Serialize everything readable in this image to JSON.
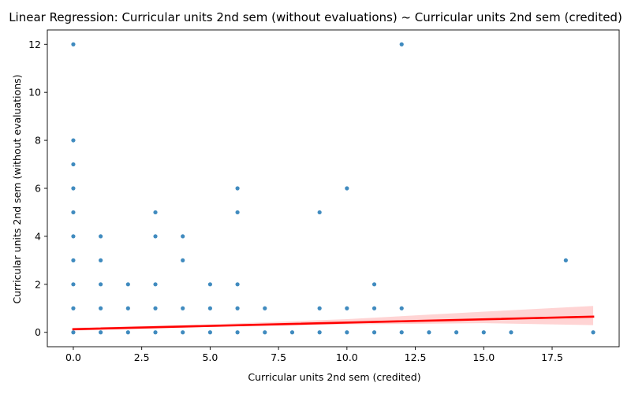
{
  "chart_data": {
    "type": "scatter",
    "title": "Linear Regression: Curricular units 2nd sem (without evaluations) ~ Curricular units 2nd sem (credited)",
    "xlabel": "Curricular units 2nd sem (credited)",
    "ylabel": "Curricular units 2nd sem (without evaluations)",
    "xlim": [
      -0.95,
      19.95
    ],
    "ylim": [
      -0.6,
      12.6
    ],
    "xticks": [
      0,
      2.5,
      5,
      7.5,
      10,
      12.5,
      15,
      17.5
    ],
    "xtick_labels": [
      "0.0",
      "2.5",
      "5.0",
      "7.5",
      "10.0",
      "12.5",
      "15.0",
      "17.5"
    ],
    "yticks": [
      0,
      2,
      4,
      6,
      8,
      10,
      12
    ],
    "ytick_labels": [
      "0",
      "2",
      "4",
      "6",
      "8",
      "10",
      "12"
    ],
    "grid": false,
    "point_color": "#1f77b4",
    "line_color": "#ff0000",
    "band_color": "#ff0000",
    "points": [
      [
        0,
        0
      ],
      [
        0,
        1
      ],
      [
        0,
        2
      ],
      [
        0,
        3
      ],
      [
        0,
        4
      ],
      [
        0,
        5
      ],
      [
        0,
        6
      ],
      [
        0,
        7
      ],
      [
        0,
        8
      ],
      [
        0,
        12
      ],
      [
        1,
        0
      ],
      [
        1,
        1
      ],
      [
        1,
        2
      ],
      [
        1,
        3
      ],
      [
        1,
        4
      ],
      [
        2,
        0
      ],
      [
        2,
        1
      ],
      [
        2,
        2
      ],
      [
        3,
        0
      ],
      [
        3,
        1
      ],
      [
        3,
        2
      ],
      [
        3,
        4
      ],
      [
        3,
        5
      ],
      [
        4,
        0
      ],
      [
        4,
        1
      ],
      [
        4,
        3
      ],
      [
        4,
        4
      ],
      [
        5,
        0
      ],
      [
        5,
        1
      ],
      [
        5,
        2
      ],
      [
        6,
        0
      ],
      [
        6,
        1
      ],
      [
        6,
        2
      ],
      [
        6,
        5
      ],
      [
        6,
        6
      ],
      [
        7,
        0
      ],
      [
        7,
        1
      ],
      [
        8,
        0
      ],
      [
        9,
        0
      ],
      [
        9,
        1
      ],
      [
        9,
        5
      ],
      [
        10,
        0
      ],
      [
        10,
        1
      ],
      [
        10,
        6
      ],
      [
        11,
        0
      ],
      [
        11,
        1
      ],
      [
        11,
        2
      ],
      [
        12,
        0
      ],
      [
        12,
        1
      ],
      [
        12,
        12
      ],
      [
        13,
        0
      ],
      [
        14,
        0
      ],
      [
        15,
        0
      ],
      [
        16,
        0
      ],
      [
        18,
        3
      ],
      [
        19,
        0
      ]
    ],
    "regression": {
      "intercept": 0.13,
      "slope": 0.0275,
      "x_range": [
        0,
        19
      ],
      "ci_band": [
        {
          "x": 0,
          "lower": 0.07,
          "upper": 0.19
        },
        {
          "x": 5,
          "lower": 0.22,
          "upper": 0.33
        },
        {
          "x": 10,
          "lower": 0.33,
          "upper": 0.55
        },
        {
          "x": 15,
          "lower": 0.38,
          "upper": 0.86
        },
        {
          "x": 19,
          "lower": 0.3,
          "upper": 1.1
        }
      ]
    }
  }
}
